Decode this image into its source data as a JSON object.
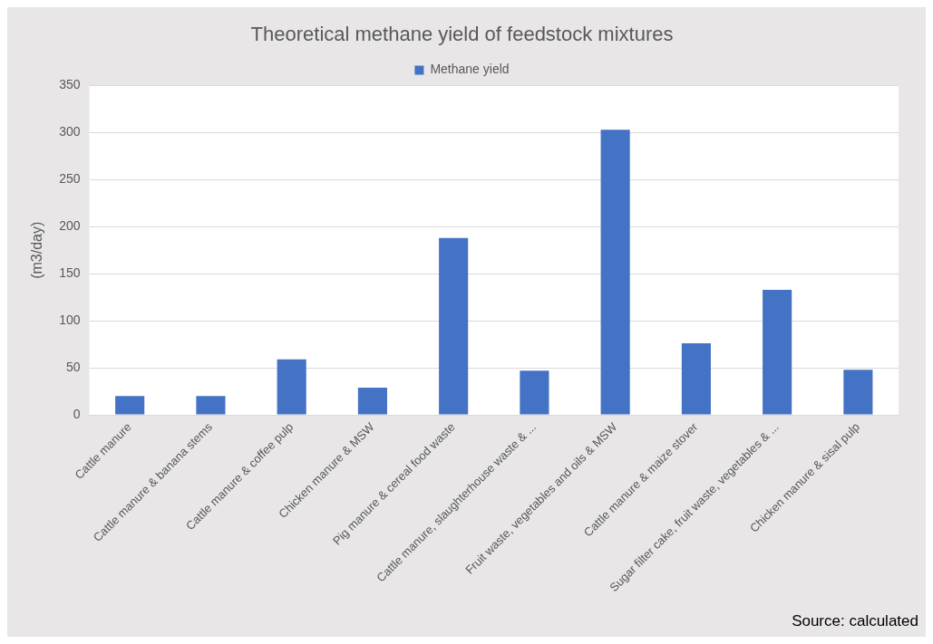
{
  "chart_data": {
    "type": "bar",
    "title": "Theoretical methane yield of feedstock mixtures",
    "ylabel": "(m3/day)",
    "categories": [
      "Cattle manure",
      "Cattle manure & banana stems",
      "Cattle manure & coffee pulp",
      "Chicken manure & MSW",
      "Pig manure & cereal food waste",
      "Cattle manure, slaughterhouse waste & ...",
      "Fruit waste, vegetables and oils & MSW",
      "Cattle manure & maize stover",
      "Sugar filter cake, fruit waste, vegetables & ...",
      "Chicken manure & sisal pulp"
    ],
    "series": [
      {
        "name": "Methane yield",
        "color": "#4472c4",
        "values": [
          20,
          20,
          59,
          29,
          188,
          47,
          303,
          76,
          133,
          48
        ]
      }
    ],
    "ylim": [
      0,
      350
    ],
    "yticks": [
      0,
      50,
      100,
      150,
      200,
      250,
      300,
      350
    ],
    "grid": "y",
    "legend": "top",
    "annotations": [
      "Source: calculated"
    ]
  }
}
